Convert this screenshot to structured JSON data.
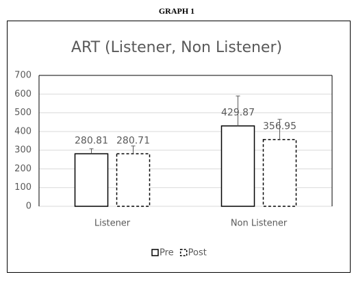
{
  "chart_data": {
    "type": "bar",
    "caption": "GRAPH 1",
    "title": "ART (Listener, Non Listener)",
    "categories": [
      "Listener",
      "Non Listener"
    ],
    "series": [
      {
        "name": "Pre",
        "color": "#000000",
        "dashed": false,
        "values": [
          280.81,
          429.87
        ],
        "errors": [
          27,
          160
        ]
      },
      {
        "name": "Post",
        "color": "#000000",
        "dashed": true,
        "values": [
          280.71,
          356.95
        ],
        "errors": [
          42,
          108
        ]
      }
    ],
    "ylim": [
      0,
      700
    ],
    "yticks": [
      0,
      100,
      200,
      300,
      400,
      500,
      600,
      700
    ],
    "grid": true,
    "legend": "bottom"
  }
}
